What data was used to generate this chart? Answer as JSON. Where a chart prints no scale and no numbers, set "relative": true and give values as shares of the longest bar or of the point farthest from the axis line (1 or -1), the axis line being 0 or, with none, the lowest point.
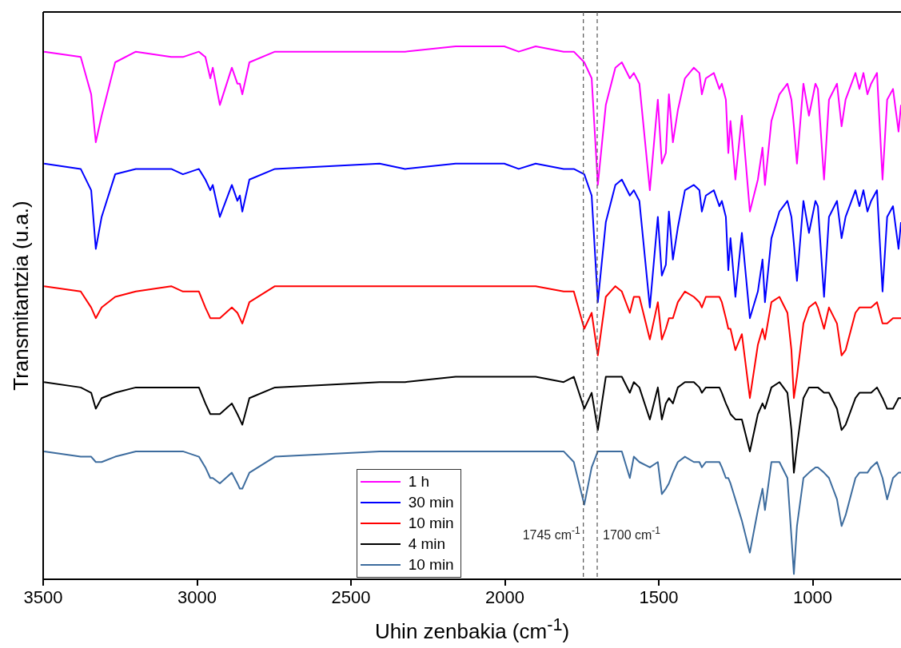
{
  "chart_data": {
    "type": "line",
    "xlabel": "Uhin zenbakia (cm$^{-1}$)",
    "ylabel": "Transmitantzia (u.a.)",
    "relative": true,
    "xlim": [
      3500,
      713
    ],
    "xticks": [
      3500,
      3000,
      2500,
      2000,
      1500,
      1000
    ],
    "grid": false,
    "legend": "bottom",
    "marker": "none",
    "line_style": "solid",
    "x": [
      3497,
      3378,
      3344,
      3329,
      3310,
      3266,
      3199,
      3084,
      3046,
      2994,
      2973,
      2957,
      2949,
      2926,
      2887,
      2869,
      2861,
      2853,
      2830,
      2747,
      2407,
      2324,
      2160,
      2002,
      1955,
      1900,
      1809,
      1776,
      1742,
      1718,
      1698,
      1672,
      1641,
      1620,
      1594,
      1581,
      1563,
      1529,
      1503,
      1490,
      1477,
      1467,
      1454,
      1438,
      1415,
      1386,
      1368,
      1360,
      1347,
      1321,
      1303,
      1295,
      1282,
      1274,
      1267,
      1251,
      1230,
      1204,
      1178,
      1163,
      1155,
      1134,
      1108,
      1082,
      1069,
      1061,
      1051,
      1030,
      1012,
      991,
      983,
      963,
      947,
      921,
      906,
      893,
      861,
      848,
      835,
      822,
      810,
      791,
      773,
      758,
      739,
      721,
      713
    ],
    "series": [
      {
        "name": "1 h",
        "color": "#ff00ff",
        "values": [
          0.99,
          0.98,
          0.91,
          0.82,
          0.87,
          0.97,
          0.99,
          0.98,
          0.98,
          0.99,
          0.98,
          0.94,
          0.96,
          0.89,
          0.96,
          0.93,
          0.93,
          0.91,
          0.97,
          0.99,
          0.99,
          0.99,
          1.0,
          1.0,
          0.99,
          1.0,
          0.99,
          0.99,
          0.97,
          0.94,
          0.74,
          0.89,
          0.96,
          0.97,
          0.94,
          0.95,
          0.93,
          0.73,
          0.9,
          0.78,
          0.8,
          0.91,
          0.82,
          0.88,
          0.94,
          0.96,
          0.95,
          0.91,
          0.94,
          0.95,
          0.92,
          0.93,
          0.9,
          0.8,
          0.86,
          0.75,
          0.87,
          0.69,
          0.75,
          0.81,
          0.74,
          0.86,
          0.91,
          0.93,
          0.9,
          0.85,
          0.78,
          0.93,
          0.87,
          0.93,
          0.92,
          0.75,
          0.9,
          0.93,
          0.85,
          0.9,
          0.95,
          0.92,
          0.95,
          0.91,
          0.93,
          0.95,
          0.75,
          0.9,
          0.92,
          0.84,
          0.89
        ]
      },
      {
        "name": "30 min",
        "color": "#0000ff",
        "values": [
          0.78,
          0.77,
          0.73,
          0.62,
          0.68,
          0.76,
          0.77,
          0.77,
          0.76,
          0.77,
          0.75,
          0.73,
          0.74,
          0.68,
          0.74,
          0.71,
          0.72,
          0.69,
          0.75,
          0.77,
          0.78,
          0.77,
          0.78,
          0.78,
          0.77,
          0.78,
          0.77,
          0.77,
          0.76,
          0.72,
          0.52,
          0.67,
          0.74,
          0.75,
          0.72,
          0.73,
          0.71,
          0.51,
          0.68,
          0.57,
          0.59,
          0.69,
          0.6,
          0.66,
          0.73,
          0.74,
          0.73,
          0.69,
          0.72,
          0.73,
          0.7,
          0.71,
          0.68,
          0.58,
          0.64,
          0.53,
          0.65,
          0.49,
          0.54,
          0.6,
          0.52,
          0.64,
          0.69,
          0.71,
          0.68,
          0.63,
          0.56,
          0.71,
          0.65,
          0.71,
          0.7,
          0.53,
          0.68,
          0.71,
          0.64,
          0.68,
          0.73,
          0.7,
          0.73,
          0.69,
          0.71,
          0.73,
          0.54,
          0.68,
          0.7,
          0.62,
          0.67
        ]
      },
      {
        "name": "10 min",
        "color": "#ff0000",
        "values": [
          0.55,
          0.54,
          0.51,
          0.49,
          0.51,
          0.53,
          0.54,
          0.55,
          0.54,
          0.54,
          0.51,
          0.49,
          0.49,
          0.49,
          0.51,
          0.5,
          0.49,
          0.48,
          0.52,
          0.55,
          0.55,
          0.55,
          0.55,
          0.55,
          0.55,
          0.55,
          0.54,
          0.54,
          0.47,
          0.5,
          0.42,
          0.53,
          0.55,
          0.54,
          0.5,
          0.53,
          0.53,
          0.45,
          0.52,
          0.45,
          0.47,
          0.49,
          0.49,
          0.52,
          0.54,
          0.53,
          0.52,
          0.51,
          0.53,
          0.53,
          0.53,
          0.52,
          0.49,
          0.47,
          0.47,
          0.43,
          0.46,
          0.34,
          0.44,
          0.47,
          0.45,
          0.52,
          0.53,
          0.5,
          0.43,
          0.34,
          0.38,
          0.48,
          0.51,
          0.52,
          0.51,
          0.47,
          0.51,
          0.48,
          0.42,
          0.43,
          0.5,
          0.51,
          0.51,
          0.51,
          0.51,
          0.52,
          0.48,
          0.48,
          0.49,
          0.49,
          0.49
        ]
      },
      {
        "name": "4 min",
        "color": "#000000",
        "values": [
          0.37,
          0.36,
          0.35,
          0.32,
          0.34,
          0.35,
          0.36,
          0.36,
          0.36,
          0.36,
          0.33,
          0.31,
          0.31,
          0.31,
          0.33,
          0.31,
          0.3,
          0.29,
          0.34,
          0.36,
          0.37,
          0.37,
          0.38,
          0.38,
          0.38,
          0.38,
          0.37,
          0.38,
          0.32,
          0.35,
          0.28,
          0.38,
          0.38,
          0.38,
          0.35,
          0.37,
          0.36,
          0.3,
          0.36,
          0.3,
          0.33,
          0.34,
          0.33,
          0.36,
          0.37,
          0.37,
          0.36,
          0.35,
          0.36,
          0.36,
          0.36,
          0.35,
          0.33,
          0.32,
          0.31,
          0.3,
          0.3,
          0.24,
          0.31,
          0.33,
          0.32,
          0.36,
          0.37,
          0.35,
          0.28,
          0.2,
          0.25,
          0.34,
          0.36,
          0.36,
          0.36,
          0.35,
          0.35,
          0.32,
          0.28,
          0.29,
          0.34,
          0.35,
          0.35,
          0.35,
          0.35,
          0.36,
          0.34,
          0.32,
          0.32,
          0.34,
          0.34
        ]
      },
      {
        "name": "10 min",
        "color": "#3d6c9e",
        "values": [
          0.24,
          0.23,
          0.23,
          0.22,
          0.22,
          0.23,
          0.24,
          0.24,
          0.24,
          0.23,
          0.21,
          0.19,
          0.19,
          0.18,
          0.2,
          0.18,
          0.17,
          0.17,
          0.2,
          0.23,
          0.24,
          0.24,
          0.24,
          0.24,
          0.24,
          0.24,
          0.24,
          0.22,
          0.14,
          0.21,
          0.24,
          0.24,
          0.24,
          0.24,
          0.19,
          0.23,
          0.22,
          0.21,
          0.22,
          0.16,
          0.17,
          0.18,
          0.2,
          0.22,
          0.23,
          0.22,
          0.22,
          0.21,
          0.22,
          0.22,
          0.22,
          0.21,
          0.19,
          0.19,
          0.18,
          0.15,
          0.11,
          0.05,
          0.13,
          0.17,
          0.13,
          0.22,
          0.22,
          0.19,
          0.08,
          0.01,
          0.1,
          0.19,
          0.2,
          0.21,
          0.21,
          0.2,
          0.19,
          0.15,
          0.1,
          0.12,
          0.19,
          0.2,
          0.2,
          0.2,
          0.21,
          0.22,
          0.19,
          0.15,
          0.19,
          0.2,
          0.2
        ]
      }
    ],
    "ref_lines": [
      {
        "axis": "x",
        "value": 1745,
        "label": "1745 cm$^{-1}$",
        "color": "#555555",
        "line_style": "dashed"
      },
      {
        "axis": "x",
        "value": 1700,
        "label": "1700 cm$^{-1}$",
        "color": "#555555",
        "line_style": "dashed"
      }
    ]
  }
}
